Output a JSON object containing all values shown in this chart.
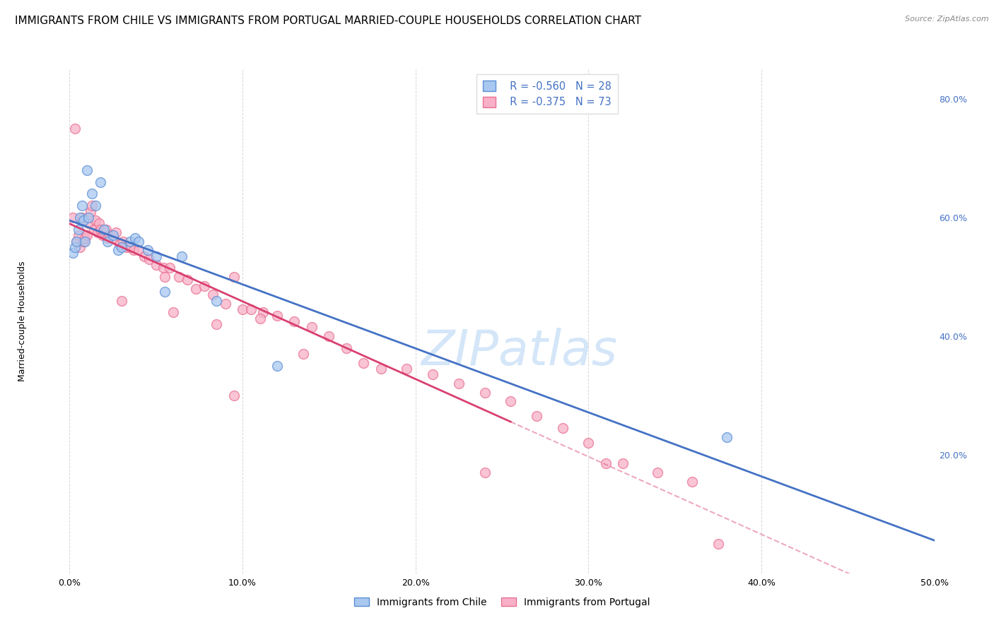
{
  "title": "IMMIGRANTS FROM CHILE VS IMMIGRANTS FROM PORTUGAL MARRIED-COUPLE HOUSEHOLDS CORRELATION CHART",
  "source": "Source: ZipAtlas.com",
  "ylabel": "Married-couple Households",
  "legend_chile_r": "-0.560",
  "legend_chile_n": "28",
  "legend_portugal_r": "-0.375",
  "legend_portugal_n": "73",
  "legend_label_chile": "Immigrants from Chile",
  "legend_label_portugal": "Immigrants from Portugal",
  "chile_color": "#A8C8F0",
  "portugal_color": "#F8B0C8",
  "chile_edge_color": "#5B8ED6",
  "portugal_edge_color": "#E87090",
  "chile_line_color": "#4472C4",
  "portugal_line_color": "#D94070",
  "watermark": "ZIPatlas",
  "watermark_color": "#D0E4F8",
  "xlim": [
    0.0,
    0.5
  ],
  "ylim": [
    0.0,
    0.85
  ],
  "chile_scatter_x": [
    0.002,
    0.003,
    0.004,
    0.005,
    0.006,
    0.007,
    0.008,
    0.009,
    0.01,
    0.011,
    0.013,
    0.015,
    0.018,
    0.02,
    0.022,
    0.025,
    0.028,
    0.03,
    0.035,
    0.038,
    0.04,
    0.045,
    0.05,
    0.055,
    0.065,
    0.085,
    0.12,
    0.38
  ],
  "chile_scatter_y": [
    0.54,
    0.55,
    0.56,
    0.58,
    0.6,
    0.62,
    0.595,
    0.56,
    0.68,
    0.6,
    0.64,
    0.62,
    0.66,
    0.58,
    0.56,
    0.57,
    0.545,
    0.55,
    0.56,
    0.565,
    0.56,
    0.545,
    0.535,
    0.475,
    0.535,
    0.46,
    0.35,
    0.23
  ],
  "portugal_scatter_x": [
    0.002,
    0.003,
    0.004,
    0.005,
    0.006,
    0.007,
    0.008,
    0.009,
    0.01,
    0.011,
    0.012,
    0.013,
    0.014,
    0.015,
    0.016,
    0.017,
    0.018,
    0.019,
    0.02,
    0.021,
    0.022,
    0.023,
    0.025,
    0.027,
    0.029,
    0.031,
    0.033,
    0.035,
    0.037,
    0.04,
    0.043,
    0.046,
    0.05,
    0.054,
    0.058,
    0.063,
    0.068,
    0.073,
    0.078,
    0.083,
    0.09,
    0.095,
    0.1,
    0.105,
    0.112,
    0.12,
    0.13,
    0.14,
    0.15,
    0.16,
    0.17,
    0.18,
    0.195,
    0.21,
    0.225,
    0.24,
    0.255,
    0.27,
    0.285,
    0.3,
    0.32,
    0.34,
    0.36,
    0.375,
    0.03,
    0.06,
    0.085,
    0.11,
    0.135,
    0.095,
    0.055,
    0.24,
    0.31
  ],
  "portugal_scatter_y": [
    0.6,
    0.75,
    0.56,
    0.57,
    0.55,
    0.6,
    0.56,
    0.565,
    0.57,
    0.59,
    0.61,
    0.62,
    0.58,
    0.595,
    0.575,
    0.59,
    0.58,
    0.57,
    0.575,
    0.58,
    0.565,
    0.57,
    0.565,
    0.575,
    0.555,
    0.56,
    0.55,
    0.55,
    0.545,
    0.545,
    0.535,
    0.53,
    0.52,
    0.515,
    0.515,
    0.5,
    0.495,
    0.48,
    0.485,
    0.47,
    0.455,
    0.5,
    0.445,
    0.445,
    0.44,
    0.435,
    0.425,
    0.415,
    0.4,
    0.38,
    0.355,
    0.345,
    0.345,
    0.335,
    0.32,
    0.305,
    0.29,
    0.265,
    0.245,
    0.22,
    0.185,
    0.17,
    0.155,
    0.05,
    0.46,
    0.44,
    0.42,
    0.43,
    0.37,
    0.3,
    0.5,
    0.17,
    0.185
  ],
  "background_color": "#FFFFFF",
  "grid_color": "#CCCCCC",
  "title_fontsize": 11,
  "axis_fontsize": 9,
  "marker_size": 100,
  "watermark_fontsize": 50,
  "portugal_line_solid_end": 0.255,
  "portugal_line_dash_end": 0.5
}
